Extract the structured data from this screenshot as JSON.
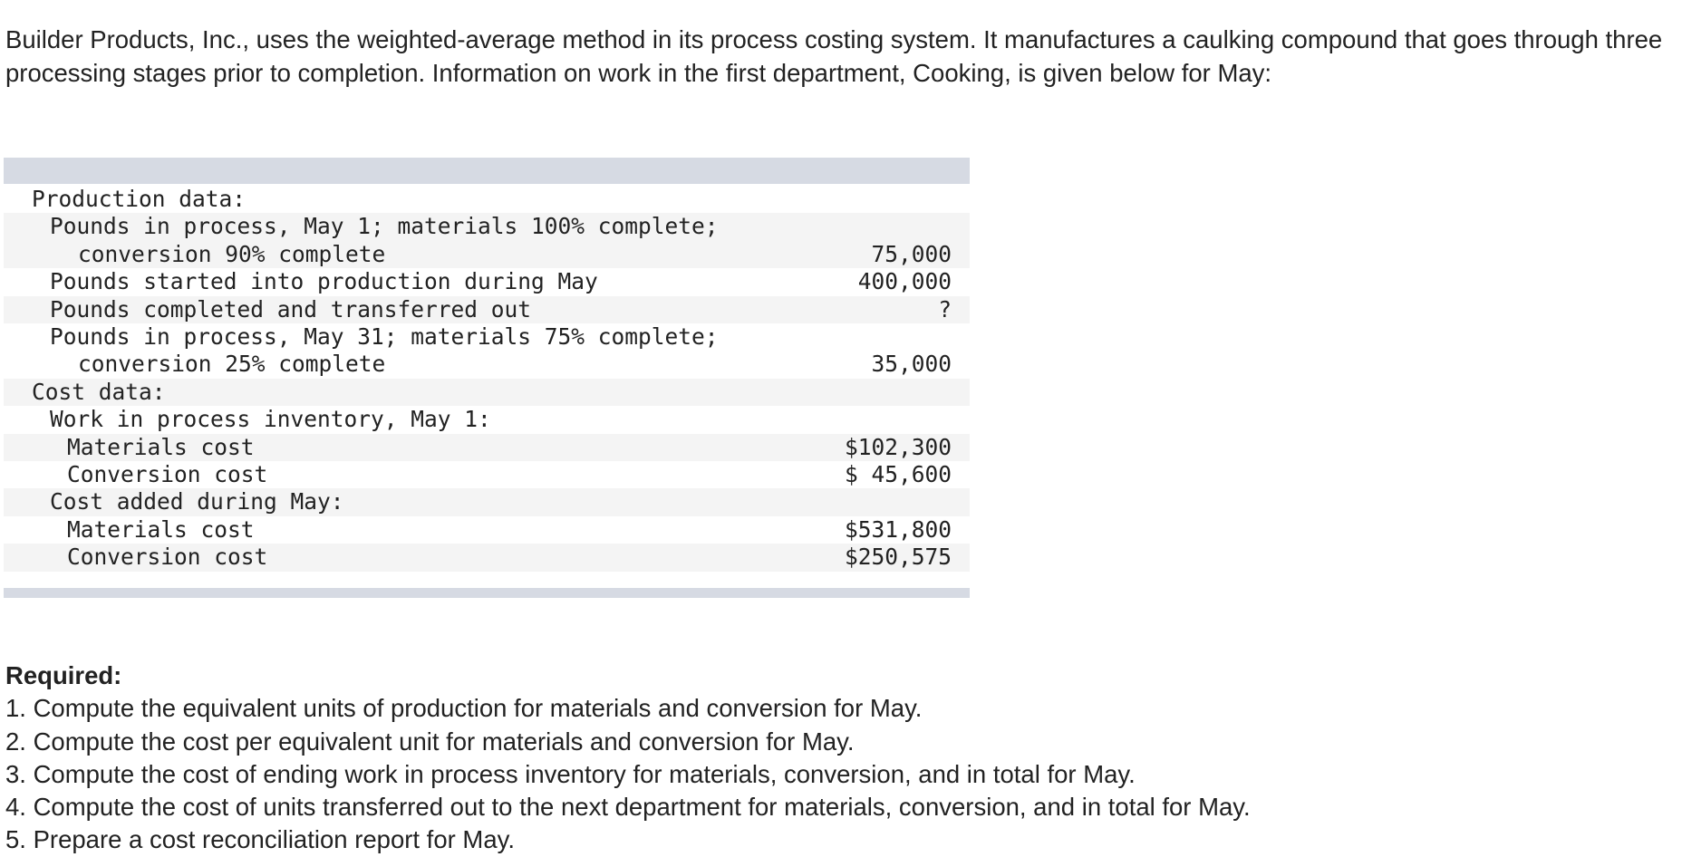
{
  "intro": "Builder Products, Inc., uses the weighted-average method in its process costing system. It manufactures a caulking compound that goes through three processing stages prior to completion. Information on work in the first department, Cooking, is given below for May:",
  "table": {
    "rows": [
      {
        "level": 0,
        "lines": [
          "Production data:"
        ],
        "value": ""
      },
      {
        "level": 1,
        "lines": [
          "Pounds in process, May 1; materials 100% complete;",
          "conversion 90% complete"
        ],
        "value": "75,000"
      },
      {
        "level": 1,
        "lines": [
          "Pounds started into production during May"
        ],
        "value": "400,000"
      },
      {
        "level": 1,
        "lines": [
          "Pounds completed and transferred out"
        ],
        "value": "?"
      },
      {
        "level": 1,
        "lines": [
          "Pounds in process, May 31; materials 75% complete;",
          "conversion 25% complete"
        ],
        "value": "35,000"
      },
      {
        "level": 0,
        "lines": [
          "Cost data:"
        ],
        "value": ""
      },
      {
        "level": 1,
        "lines": [
          "Work in process inventory, May 1:"
        ],
        "value": ""
      },
      {
        "level": 2,
        "lines": [
          "Materials cost"
        ],
        "value": "$102,300"
      },
      {
        "level": 2,
        "lines": [
          "Conversion cost"
        ],
        "value": "$ 45,600"
      },
      {
        "level": 1,
        "lines": [
          "Cost added during May:"
        ],
        "value": ""
      },
      {
        "level": 2,
        "lines": [
          "Materials cost"
        ],
        "value": "$531,800"
      },
      {
        "level": 2,
        "lines": [
          "Conversion cost"
        ],
        "value": "$250,575"
      }
    ]
  },
  "required": {
    "title": "Required:",
    "items": [
      "1. Compute the equivalent units of production for materials and conversion for May.",
      "2. Compute the cost per equivalent unit for materials and conversion for May.",
      "3. Compute the cost of ending work in process inventory for materials, conversion, and in total for May.",
      "4. Compute the cost of units transferred out to the next department for materials, conversion, and in total for May.",
      "5. Prepare a cost reconciliation report for May."
    ]
  }
}
